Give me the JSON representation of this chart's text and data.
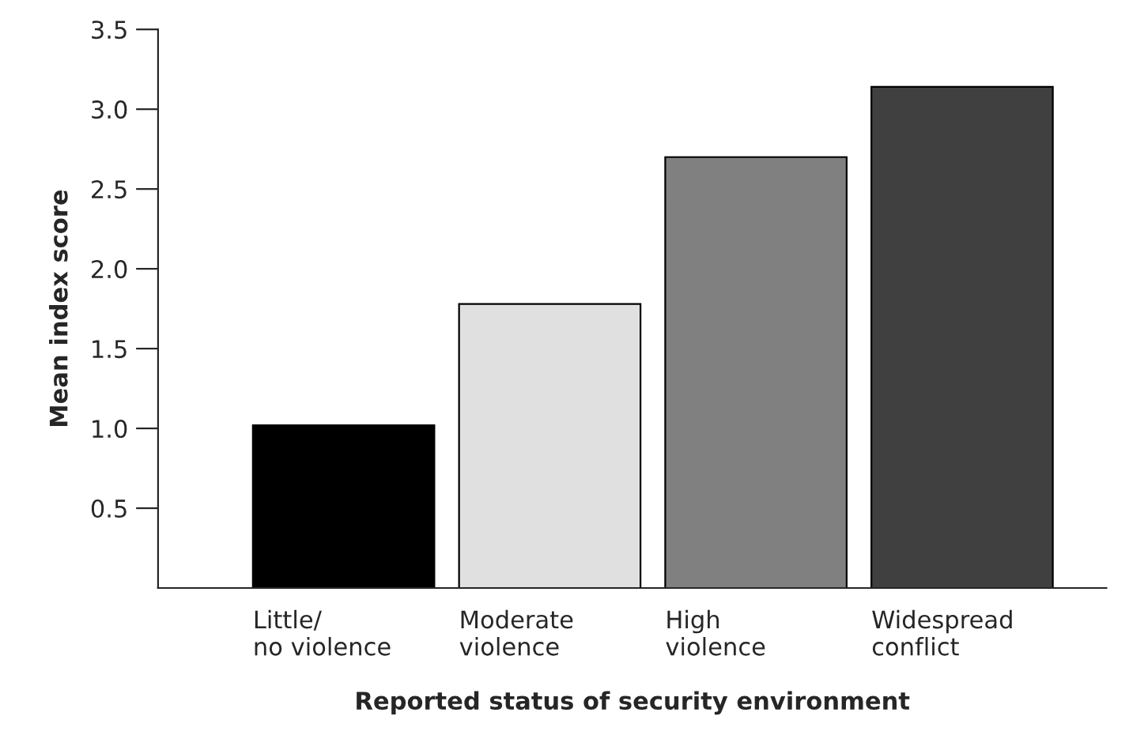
{
  "chart_data": {
    "type": "bar",
    "categories": [
      "Little/\nno violence",
      "Moderate\nviolence",
      "High\nviolence",
      "Widespread\nconflict"
    ],
    "values": [
      1.02,
      1.78,
      2.7,
      3.14
    ],
    "colors": [
      "#000000",
      "#e0e0e0",
      "#808080",
      "#404040"
    ],
    "xlabel": "Reported status of security environment",
    "ylabel": "Mean index score",
    "ylim": [
      0,
      3.5
    ],
    "yticks": [
      0.5,
      {
        "value": 1,
        "label": "1.0"
      },
      1.5,
      {
        "value": 2,
        "label": "2.0"
      },
      2.5,
      {
        "value": 3,
        "label": "3.0"
      },
      3.5
    ],
    "grid": false,
    "legend": false
  }
}
